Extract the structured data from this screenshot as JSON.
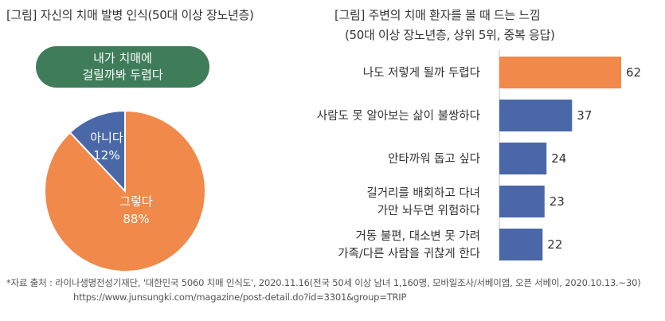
{
  "left_title": "[그림] 자신의 치매 발병 인식(50대 이상 장노년층)",
  "pill": {
    "line1": "내가 치매에",
    "line2": "걸릴까봐 두렵다"
  },
  "right_title": {
    "line1": "[그림] 주변의 치매 환자를 볼 때 드는 느낌",
    "line2": "(50대 이상 장노년층, 상위 5위, 중복 응답)"
  },
  "footnote": {
    "line1": "*자료 출처 : 라이나생명전성기재단, '대한민국 5060 치매 인식도', 2020.11.16(전국 50세 이상 남녀 1,160명, 모바일조사/서베이앱, 오픈 서베이, 2020.10.13.~30)",
    "line2": "https://www.junsungki.com/magazine/post-detail.do?id=3301&group=TRIP"
  },
  "colors": {
    "orange": "#f0894a",
    "blue": "#4a68a8",
    "green": "#3f7d5a"
  },
  "chart_data": [
    {
      "type": "pie",
      "slices": [
        {
          "label": "그렇다",
          "value": 88,
          "display": "88%",
          "color": "#f0894a"
        },
        {
          "label": "아니다",
          "value": 12,
          "display": "12%",
          "color": "#4a68a8"
        }
      ]
    },
    {
      "type": "bar",
      "orientation": "horizontal",
      "categories": [
        [
          "나도 저렇게 될까 두렵다"
        ],
        [
          "사람도 못 알아보는 삶이 불쌍하다"
        ],
        [
          "안타까워 돕고 싶다"
        ],
        [
          "길거리를 배회하고 다녀",
          "가만 놔두면 위험하다"
        ],
        [
          "거동 불편, 대소변 못 가려",
          "가족/다른 사람을 귀찮게 한다"
        ]
      ],
      "values": [
        62,
        37,
        24,
        23,
        22
      ],
      "colors": [
        "#f0894a",
        "#4a68a8",
        "#4a68a8",
        "#4a68a8",
        "#4a68a8"
      ],
      "xlim": [
        0,
        62
      ]
    }
  ]
}
